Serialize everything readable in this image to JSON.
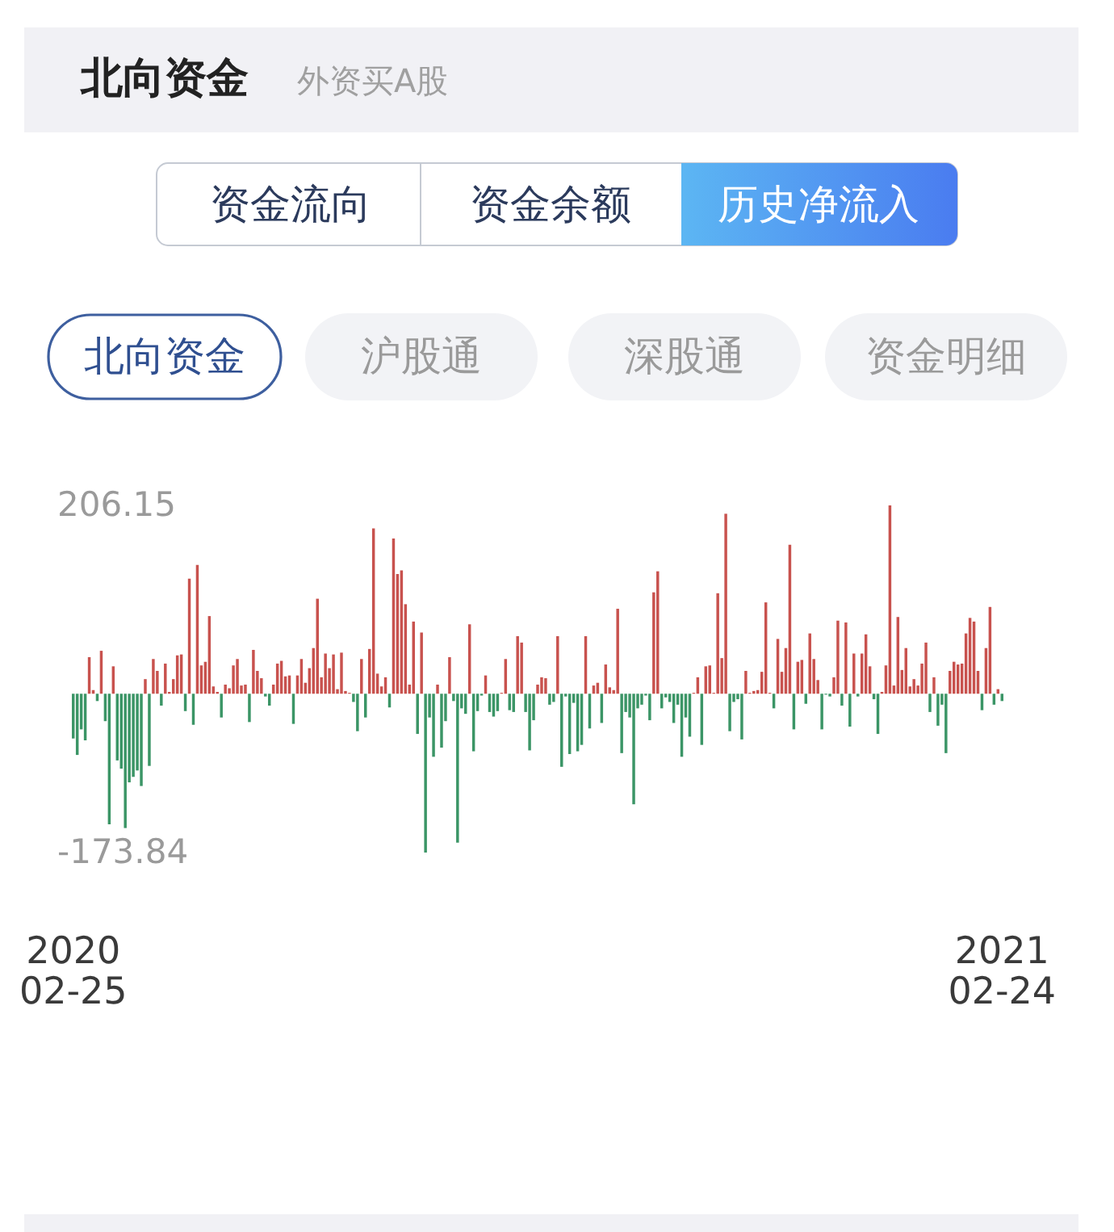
{
  "chart_data": {
    "type": "bar",
    "title": "北向资金",
    "subtitle": "外资买A股",
    "annotations": [
      "资金流向",
      "资金余额",
      "历史净流入",
      "北向资金",
      "沪股通",
      "深股通",
      "资金明细"
    ],
    "categories": [
      "2020\n02-25",
      null,
      null,
      null,
      null,
      null,
      null,
      null,
      null,
      null,
      null,
      null,
      null,
      null,
      null,
      null,
      null,
      null,
      null,
      null,
      null,
      null,
      null,
      null,
      null,
      null,
      null,
      null,
      null,
      null,
      null,
      null,
      null,
      null,
      null,
      null,
      null,
      null,
      null,
      null,
      null,
      null,
      null,
      null,
      null,
      null,
      null,
      null,
      null,
      null,
      null,
      null,
      null,
      null,
      null,
      null,
      null,
      null,
      null,
      null,
      null,
      null,
      null,
      null,
      null,
      null,
      null,
      null,
      null,
      null,
      null,
      null,
      null,
      null,
      null,
      null,
      null,
      null,
      null,
      null,
      null,
      null,
      null,
      null,
      null,
      null,
      null,
      null,
      null,
      null,
      null,
      null,
      null,
      null,
      null,
      null,
      null,
      null,
      null,
      null,
      null,
      null,
      null,
      null,
      null,
      null,
      null,
      null,
      null,
      null,
      null,
      null,
      null,
      null,
      null,
      null,
      null,
      null,
      null,
      null,
      null,
      null,
      null,
      null,
      null,
      null,
      null,
      null,
      null,
      null,
      null,
      null,
      null,
      null,
      null,
      null,
      null,
      null,
      null,
      null,
      null,
      null,
      null,
      null,
      null,
      null,
      null,
      null,
      null,
      null,
      null,
      null,
      null,
      null,
      null,
      null,
      null,
      null,
      null,
      null,
      null,
      null,
      null,
      null,
      null,
      null,
      null,
      null,
      null,
      null,
      null,
      null,
      null,
      null,
      null,
      null,
      null,
      null,
      null,
      null,
      null,
      null,
      null,
      null,
      null,
      null,
      null,
      null,
      null,
      null,
      null,
      null,
      null,
      null,
      null,
      null,
      null,
      null,
      null,
      null,
      null,
      null,
      null,
      null,
      null,
      null,
      null,
      null,
      null,
      null,
      null,
      null,
      null,
      null,
      null,
      null,
      null,
      null,
      null,
      null,
      null,
      null,
      null,
      null,
      null,
      null,
      null,
      null,
      null,
      null,
      null,
      null,
      "2021\n02-24"
    ],
    "values": [
      -49,
      -67,
      -39,
      -51,
      40,
      4,
      -8,
      47,
      -30,
      -143,
      30,
      -73,
      -82,
      -147,
      -97,
      -91,
      -84,
      -101,
      16,
      -79,
      38,
      25,
      -13,
      33,
      2,
      16,
      42,
      43,
      -19,
      126,
      -34,
      141,
      31,
      35,
      85,
      8,
      2,
      -26,
      10,
      6,
      31,
      38,
      9,
      10,
      -31,
      48,
      25,
      17,
      -3,
      -13,
      10,
      33,
      36,
      19,
      20,
      -33,
      20,
      38,
      12,
      28,
      50,
      104,
      18,
      44,
      28,
      43,
      5,
      45,
      3,
      1,
      -9,
      -41,
      38,
      -26,
      49,
      181,
      22,
      8,
      18,
      -15,
      170,
      131,
      135,
      98,
      10,
      79,
      -44,
      67,
      -173.84,
      -26,
      -69,
      10,
      -59,
      -30,
      40,
      -8,
      -163,
      -16,
      -22,
      76,
      -63,
      -19,
      -2,
      20,
      -20,
      -25,
      -19,
      1,
      38,
      -18,
      -20,
      63,
      56,
      -20,
      -62,
      -29,
      10,
      18,
      17,
      -12,
      -9,
      63,
      -80,
      -3,
      -66,
      -10,
      -63,
      -56,
      63,
      -38,
      9,
      12,
      -32,
      32,
      7,
      4,
      93,
      -65,
      -20,
      -26,
      -121,
      -16,
      -12,
      -2,
      -29,
      111,
      134,
      -16,
      -4,
      -9,
      -32,
      -12,
      -69,
      -26,
      -47,
      1,
      18,
      -56,
      30,
      31,
      1,
      110,
      39,
      197,
      -41,
      -9,
      -6,
      -50,
      25,
      1,
      3,
      4,
      24,
      100,
      1,
      -16,
      60,
      24,
      50,
      163,
      -39,
      35,
      37,
      -11,
      66,
      38,
      15,
      -39,
      -1,
      -3,
      18,
      80,
      -13,
      78,
      -36,
      44,
      -3,
      44,
      65,
      30,
      -6,
      -44,
      2,
      31,
      206.15,
      9,
      84,
      26,
      50,
      8,
      16,
      9,
      33,
      56,
      -20,
      18,
      -35,
      -12,
      -65,
      25,
      35,
      32,
      33,
      66,
      83,
      79,
      25,
      -18,
      50,
      95,
      -12,
      5,
      -8
    ],
    "colors": [
      "#3b9566",
      "#3b9566",
      "#3b9566",
      "#3b9566",
      "#c8524e",
      "#c8524e",
      "#3b9566",
      "#c8524e",
      "#3b9566",
      "#3b9566",
      "#c8524e",
      "#3b9566",
      "#3b9566",
      "#3b9566",
      "#3b9566",
      "#3b9566",
      "#3b9566",
      "#3b9566",
      "#c8524e",
      "#3b9566",
      "#c8524e",
      "#c8524e",
      "#3b9566",
      "#c8524e",
      "#c8524e",
      "#c8524e",
      "#c8524e",
      "#c8524e",
      "#3b9566",
      "#c8524e",
      "#3b9566",
      "#c8524e",
      "#c8524e",
      "#c8524e",
      "#c8524e",
      "#c8524e",
      "#c8524e",
      "#3b9566",
      "#c8524e",
      "#c8524e",
      "#c8524e",
      "#c8524e",
      "#c8524e",
      "#c8524e",
      "#3b9566",
      "#c8524e",
      "#c8524e",
      "#c8524e",
      "#3b9566",
      "#3b9566",
      "#c8524e",
      "#c8524e",
      "#c8524e",
      "#c8524e",
      "#c8524e",
      "#3b9566",
      "#c8524e",
      "#c8524e",
      "#c8524e",
      "#c8524e",
      "#c8524e",
      "#c8524e",
      "#c8524e",
      "#c8524e",
      "#c8524e",
      "#c8524e",
      "#c8524e",
      "#c8524e",
      "#c8524e",
      "#c8524e",
      "#3b9566",
      "#3b9566",
      "#c8524e",
      "#3b9566",
      "#c8524e",
      "#c8524e",
      "#c8524e",
      "#c8524e",
      "#c8524e",
      "#3b9566",
      "#c8524e",
      "#c8524e",
      "#c8524e",
      "#c8524e",
      "#c8524e",
      "#c8524e",
      "#3b9566",
      "#c8524e",
      "#3b9566",
      "#3b9566",
      "#3b9566",
      "#c8524e",
      "#3b9566",
      "#3b9566",
      "#c8524e",
      "#3b9566",
      "#3b9566",
      "#3b9566",
      "#3b9566",
      "#c8524e",
      "#3b9566",
      "#3b9566",
      "#3b9566",
      "#c8524e",
      "#3b9566",
      "#3b9566",
      "#3b9566",
      "#c8524e",
      "#c8524e",
      "#3b9566",
      "#3b9566",
      "#c8524e",
      "#c8524e",
      "#3b9566",
      "#3b9566",
      "#3b9566",
      "#c8524e",
      "#c8524e",
      "#c8524e",
      "#3b9566",
      "#3b9566",
      "#c8524e",
      "#3b9566",
      "#3b9566",
      "#3b9566",
      "#3b9566",
      "#3b9566",
      "#3b9566",
      "#c8524e",
      "#3b9566",
      "#c8524e",
      "#c8524e",
      "#3b9566",
      "#c8524e",
      "#c8524e",
      "#c8524e",
      "#c8524e",
      "#3b9566",
      "#3b9566",
      "#3b9566",
      "#3b9566",
      "#3b9566",
      "#3b9566",
      "#3b9566",
      "#3b9566",
      "#c8524e",
      "#c8524e",
      "#3b9566",
      "#3b9566",
      "#3b9566",
      "#3b9566",
      "#3b9566",
      "#3b9566",
      "#3b9566",
      "#3b9566",
      "#c8524e",
      "#c8524e",
      "#3b9566",
      "#c8524e",
      "#c8524e",
      "#c8524e",
      "#c8524e",
      "#c8524e",
      "#c8524e",
      "#3b9566",
      "#3b9566",
      "#3b9566",
      "#3b9566",
      "#c8524e",
      "#c8524e",
      "#c8524e",
      "#c8524e",
      "#c8524e",
      "#c8524e",
      "#c8524e",
      "#3b9566",
      "#c8524e",
      "#c8524e",
      "#c8524e",
      "#c8524e",
      "#3b9566",
      "#c8524e",
      "#c8524e",
      "#3b9566",
      "#c8524e",
      "#c8524e",
      "#c8524e",
      "#3b9566",
      "#3b9566",
      "#3b9566",
      "#c8524e",
      "#c8524e",
      "#3b9566",
      "#c8524e",
      "#3b9566",
      "#c8524e",
      "#3b9566",
      "#c8524e",
      "#c8524e",
      "#c8524e",
      "#3b9566",
      "#3b9566",
      "#c8524e",
      "#c8524e",
      "#c8524e",
      "#c8524e",
      "#c8524e",
      "#c8524e",
      "#c8524e",
      "#c8524e",
      "#c8524e",
      "#c8524e",
      "#c8524e",
      "#c8524e",
      "#3b9566",
      "#c8524e",
      "#3b9566",
      "#3b9566",
      "#3b9566",
      "#c8524e",
      "#c8524e",
      "#c8524e",
      "#c8524e",
      "#c8524e",
      "#c8524e",
      "#c8524e",
      "#c8524e",
      "#3b9566",
      "#c8524e",
      "#c8524e",
      "#3b9566",
      "#c8524e",
      "#3b9566"
    ],
    "ylim": [
      -173.84,
      206.15
    ],
    "yticks": [
      206.15,
      -173.84
    ],
    "grid": false
  }
}
